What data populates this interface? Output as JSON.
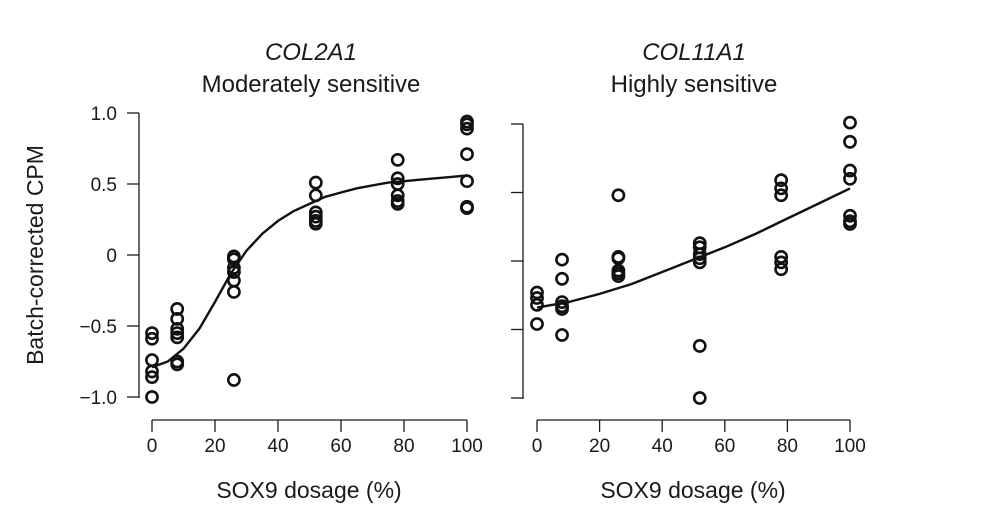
{
  "chart_data": [
    {
      "type": "scatter",
      "title": "COL2A1",
      "subtitle": "Moderately sensitive",
      "xlabel": "SOX9 dosage (%)",
      "ylabel": "Batch-corrected CPM",
      "xlim": [
        0,
        100
      ],
      "ylim": [
        -1.0,
        1.0
      ],
      "x_ticks": [
        0,
        20,
        40,
        60,
        80,
        100
      ],
      "x_tick_labels": [
        "0",
        "20",
        "40",
        "60",
        "80",
        "100"
      ],
      "y_ticks": [
        1.0,
        0.5,
        0,
        -0.5,
        -1.0
      ],
      "y_tick_labels": [
        "1.0",
        "0.5",
        "0",
        "−0.5",
        "−1.0"
      ],
      "points": [
        {
          "x": 0,
          "y": -0.55
        },
        {
          "x": 0,
          "y": -0.59
        },
        {
          "x": 0,
          "y": -0.74
        },
        {
          "x": 0,
          "y": -0.82
        },
        {
          "x": 0,
          "y": -0.86
        },
        {
          "x": 0,
          "y": -1.0
        },
        {
          "x": 8,
          "y": -0.38
        },
        {
          "x": 8,
          "y": -0.45
        },
        {
          "x": 8,
          "y": -0.52
        },
        {
          "x": 8,
          "y": -0.55
        },
        {
          "x": 8,
          "y": -0.58
        },
        {
          "x": 8,
          "y": -0.75
        },
        {
          "x": 8,
          "y": -0.77
        },
        {
          "x": 26,
          "y": -0.01
        },
        {
          "x": 26,
          "y": -0.03
        },
        {
          "x": 26,
          "y": -0.09
        },
        {
          "x": 26,
          "y": -0.12
        },
        {
          "x": 26,
          "y": -0.18
        },
        {
          "x": 26,
          "y": -0.26
        },
        {
          "x": 26,
          "y": -0.88
        },
        {
          "x": 52,
          "y": 0.51
        },
        {
          "x": 52,
          "y": 0.42
        },
        {
          "x": 52,
          "y": 0.3
        },
        {
          "x": 52,
          "y": 0.27
        },
        {
          "x": 52,
          "y": 0.24
        },
        {
          "x": 52,
          "y": 0.22
        },
        {
          "x": 78,
          "y": 0.67
        },
        {
          "x": 78,
          "y": 0.54
        },
        {
          "x": 78,
          "y": 0.5
        },
        {
          "x": 78,
          "y": 0.42
        },
        {
          "x": 78,
          "y": 0.38
        },
        {
          "x": 78,
          "y": 0.36
        },
        {
          "x": 100,
          "y": 0.94
        },
        {
          "x": 100,
          "y": 0.92
        },
        {
          "x": 100,
          "y": 0.89
        },
        {
          "x": 100,
          "y": 0.71
        },
        {
          "x": 100,
          "y": 0.52
        },
        {
          "x": 100,
          "y": 0.34
        },
        {
          "x": 100,
          "y": 0.33
        }
      ],
      "fit_line": {
        "x": [
          0,
          5,
          10,
          15,
          20,
          25,
          30,
          35,
          40,
          45,
          50,
          55,
          60,
          65,
          70,
          75,
          80,
          85,
          90,
          95,
          100
        ],
        "y": [
          -0.79,
          -0.75,
          -0.66,
          -0.52,
          -0.33,
          -0.13,
          0.03,
          0.15,
          0.24,
          0.31,
          0.36,
          0.41,
          0.44,
          0.47,
          0.49,
          0.51,
          0.52,
          0.53,
          0.54,
          0.55,
          0.56
        ]
      }
    },
    {
      "type": "scatter",
      "title": "COL11A1",
      "subtitle": "Highly sensitive",
      "xlabel": "SOX9 dosage (%)",
      "ylabel": "",
      "xlim": [
        0,
        100
      ],
      "ylim": [
        -1.0,
        1.0
      ],
      "x_ticks": [
        0,
        20,
        40,
        60,
        80,
        100
      ],
      "x_tick_labels": [
        "0",
        "20",
        "40",
        "60",
        "80",
        "100"
      ],
      "y_ticks": [
        1.0,
        0.5,
        0,
        -0.5,
        -1.0
      ],
      "points": [
        {
          "x": 0,
          "y": -0.23
        },
        {
          "x": 0,
          "y": -0.27
        },
        {
          "x": 0,
          "y": -0.32
        },
        {
          "x": 0,
          "y": -0.46
        },
        {
          "x": 8,
          "y": 0.01
        },
        {
          "x": 8,
          "y": -0.13
        },
        {
          "x": 8,
          "y": -0.3
        },
        {
          "x": 8,
          "y": -0.33
        },
        {
          "x": 8,
          "y": -0.35
        },
        {
          "x": 8,
          "y": -0.54
        },
        {
          "x": 26,
          "y": 0.48
        },
        {
          "x": 26,
          "y": 0.03
        },
        {
          "x": 26,
          "y": 0.02
        },
        {
          "x": 26,
          "y": -0.07
        },
        {
          "x": 26,
          "y": -0.09
        },
        {
          "x": 26,
          "y": -0.11
        },
        {
          "x": 52,
          "y": 0.13
        },
        {
          "x": 52,
          "y": 0.1
        },
        {
          "x": 52,
          "y": 0.05
        },
        {
          "x": 52,
          "y": 0.02
        },
        {
          "x": 52,
          "y": -0.01
        },
        {
          "x": 52,
          "y": -0.62
        },
        {
          "x": 52,
          "y": -1.0
        },
        {
          "x": 78,
          "y": 0.59
        },
        {
          "x": 78,
          "y": 0.53
        },
        {
          "x": 78,
          "y": 0.48
        },
        {
          "x": 78,
          "y": 0.03
        },
        {
          "x": 78,
          "y": -0.01
        },
        {
          "x": 78,
          "y": -0.06
        },
        {
          "x": 100,
          "y": 1.01
        },
        {
          "x": 100,
          "y": 0.87
        },
        {
          "x": 100,
          "y": 0.66
        },
        {
          "x": 100,
          "y": 0.6
        },
        {
          "x": 100,
          "y": 0.33
        },
        {
          "x": 100,
          "y": 0.29
        },
        {
          "x": 100,
          "y": 0.27
        }
      ],
      "fit_line": {
        "x": [
          0,
          10,
          20,
          30,
          40,
          50,
          60,
          70,
          80,
          90,
          100
        ],
        "y": [
          -0.34,
          -0.3,
          -0.24,
          -0.17,
          -0.08,
          0.01,
          0.1,
          0.2,
          0.31,
          0.42,
          0.53
        ]
      }
    }
  ]
}
